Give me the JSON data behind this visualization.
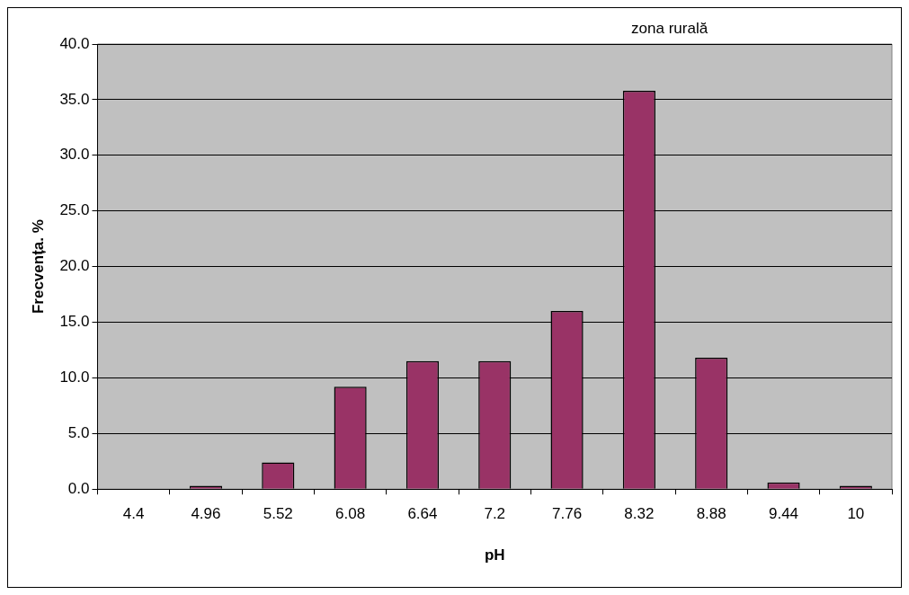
{
  "chart_data": {
    "type": "bar",
    "title": "zona rurală",
    "xlabel": "pH",
    "ylabel": "Frecvența. %",
    "categories": [
      "4.4",
      "4.96",
      "5.52",
      "6.08",
      "6.64",
      "7.2",
      "7.76",
      "8.32",
      "8.88",
      "9.44",
      "10"
    ],
    "values": [
      0,
      0.3,
      2.4,
      9.2,
      11.5,
      11.5,
      16.0,
      35.8,
      11.8,
      0.6,
      0.3
    ],
    "color": "#993366",
    "ylim": [
      0,
      40
    ],
    "yticks": [
      {
        "value": 0,
        "label": "0.0"
      },
      {
        "value": 5,
        "label": "5.0"
      },
      {
        "value": 10,
        "label": "10.0"
      },
      {
        "value": 15,
        "label": "15.0"
      },
      {
        "value": 20,
        "label": "20.0"
      },
      {
        "value": 25,
        "label": "25.0"
      },
      {
        "value": 30,
        "label": "30.0"
      },
      {
        "value": 35,
        "label": "35.0"
      },
      {
        "value": 40,
        "label": "40.0"
      }
    ],
    "grid": "y",
    "legend": false
  }
}
